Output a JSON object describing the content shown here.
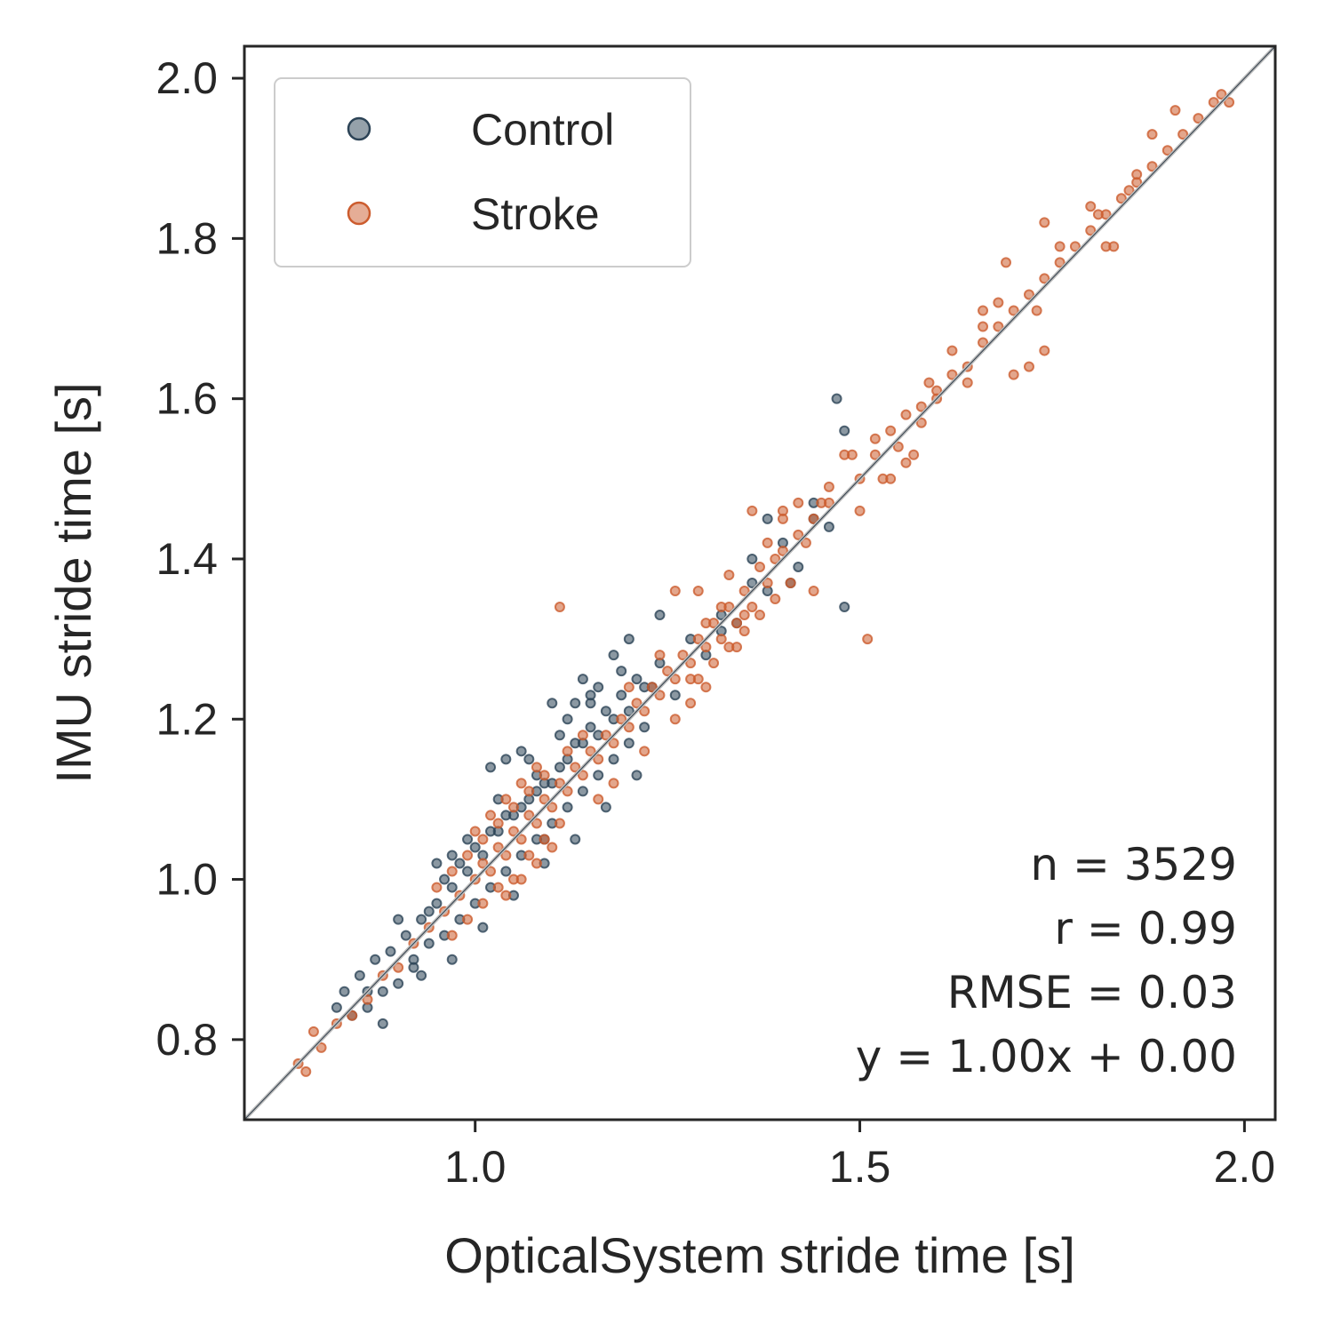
{
  "chart_data": {
    "type": "scatter",
    "title": "",
    "xlabel": "OpticalSystem stride time [s]",
    "ylabel": "IMU stride time [s]",
    "xlim": [
      0.7,
      2.04
    ],
    "ylim": [
      0.7,
      2.04
    ],
    "x_ticks": [
      "1.0",
      "1.5",
      "2.0"
    ],
    "y_ticks": [
      "0.8",
      "1.0",
      "1.2",
      "1.4",
      "1.6",
      "1.8",
      "2.0"
    ],
    "grid": false,
    "legend_position": "top-left",
    "identity_line": {
      "slope": 1.0,
      "intercept": 0.0
    },
    "stats": {
      "n": "n = 3529",
      "r": "r = 0.99",
      "rmse": "RMSE = 0.03",
      "fit": "y = 1.00x + 0.00"
    },
    "series": [
      {
        "name": "Control",
        "color": "#2c4356",
        "points": [
          [
            0.82,
            0.84
          ],
          [
            0.83,
            0.86
          ],
          [
            0.84,
            0.83
          ],
          [
            0.85,
            0.88
          ],
          [
            0.86,
            0.86
          ],
          [
            0.87,
            0.9
          ],
          [
            0.88,
            0.86
          ],
          [
            0.89,
            0.91
          ],
          [
            0.9,
            0.87
          ],
          [
            0.91,
            0.93
          ],
          [
            0.92,
            0.89
          ],
          [
            0.93,
            0.95
          ],
          [
            0.94,
            0.92
          ],
          [
            0.95,
            0.97
          ],
          [
            0.96,
            0.93
          ],
          [
            0.97,
            0.99
          ],
          [
            0.98,
            0.95
          ],
          [
            0.99,
            1.01
          ],
          [
            1.0,
            0.97
          ],
          [
            1.01,
            1.03
          ],
          [
            1.02,
            0.99
          ],
          [
            1.03,
            1.06
          ],
          [
            1.04,
            1.01
          ],
          [
            1.05,
            1.08
          ],
          [
            1.06,
            1.03
          ],
          [
            1.07,
            1.1
          ],
          [
            1.08,
            1.05
          ],
          [
            1.09,
            1.12
          ],
          [
            1.1,
            1.07
          ],
          [
            1.11,
            1.14
          ],
          [
            1.12,
            1.09
          ],
          [
            1.13,
            1.17
          ],
          [
            1.14,
            1.11
          ],
          [
            1.15,
            1.19
          ],
          [
            1.16,
            1.13
          ],
          [
            1.17,
            1.21
          ],
          [
            1.18,
            1.15
          ],
          [
            1.19,
            1.23
          ],
          [
            1.2,
            1.17
          ],
          [
            1.21,
            1.25
          ],
          [
            1.22,
            1.19
          ],
          [
            1.24,
            1.27
          ],
          [
            1.26,
            1.23
          ],
          [
            1.28,
            1.3
          ],
          [
            1.3,
            1.28
          ],
          [
            1.32,
            1.33
          ],
          [
            1.34,
            1.32
          ],
          [
            1.36,
            1.37
          ],
          [
            0.88,
            0.82
          ],
          [
            0.9,
            0.95
          ],
          [
            0.93,
            0.88
          ],
          [
            0.95,
            1.02
          ],
          [
            0.97,
            0.9
          ],
          [
            0.99,
            1.05
          ],
          [
            1.01,
            0.94
          ],
          [
            1.03,
            1.1
          ],
          [
            1.05,
            0.98
          ],
          [
            1.07,
            1.15
          ],
          [
            1.09,
            1.02
          ],
          [
            1.11,
            1.18
          ],
          [
            1.13,
            1.05
          ],
          [
            1.15,
            1.22
          ],
          [
            1.17,
            1.09
          ],
          [
            1.19,
            1.26
          ],
          [
            1.21,
            1.13
          ],
          [
            1.23,
            1.24
          ],
          [
            0.97,
            1.03
          ],
          [
            1.04,
            1.08
          ],
          [
            1.08,
            1.13
          ],
          [
            1.12,
            1.2
          ],
          [
            1.16,
            1.24
          ],
          [
            1.2,
            1.3
          ],
          [
            1.02,
            1.14
          ],
          [
            1.04,
            1.15
          ],
          [
            1.06,
            1.16
          ],
          [
            1.1,
            1.22
          ],
          [
            1.14,
            1.25
          ],
          [
            1.18,
            1.28
          ],
          [
            1.24,
            1.33
          ],
          [
            1.38,
            1.45
          ],
          [
            1.4,
            1.42
          ],
          [
            1.42,
            1.39
          ],
          [
            1.44,
            1.47
          ],
          [
            1.46,
            1.44
          ],
          [
            1.48,
            1.34
          ],
          [
            1.47,
            1.6
          ],
          [
            1.48,
            1.56
          ],
          [
            1.38,
            1.36
          ],
          [
            1.36,
            1.4
          ],
          [
            1.41,
            1.37
          ],
          [
            1.44,
            1.45
          ],
          [
            1.32,
            1.31
          ],
          [
            1.15,
            1.23
          ],
          [
            1.13,
            1.22
          ],
          [
            1.09,
            1.05
          ],
          [
            0.86,
            0.84
          ],
          [
            0.92,
            0.9
          ],
          [
            0.94,
            0.96
          ],
          [
            0.96,
            1.0
          ],
          [
            0.98,
            1.02
          ],
          [
            1.0,
            1.04
          ],
          [
            1.02,
            1.06
          ],
          [
            1.06,
            1.09
          ],
          [
            1.08,
            1.11
          ],
          [
            1.1,
            1.12
          ],
          [
            1.12,
            1.15
          ],
          [
            1.14,
            1.17
          ],
          [
            1.16,
            1.18
          ],
          [
            1.18,
            1.2
          ],
          [
            1.2,
            1.21
          ],
          [
            1.22,
            1.24
          ]
        ]
      },
      {
        "name": "Stroke",
        "color": "#cc5c2e",
        "points": [
          [
            0.77,
            0.77
          ],
          [
            0.78,
            0.76
          ],
          [
            0.79,
            0.81
          ],
          [
            0.8,
            0.79
          ],
          [
            0.82,
            0.82
          ],
          [
            0.84,
            0.83
          ],
          [
            0.86,
            0.85
          ],
          [
            0.88,
            0.88
          ],
          [
            0.9,
            0.89
          ],
          [
            0.92,
            0.92
          ],
          [
            0.94,
            0.94
          ],
          [
            0.96,
            0.96
          ],
          [
            0.98,
            0.98
          ],
          [
            1.0,
            1.0
          ],
          [
            1.01,
            1.02
          ],
          [
            1.02,
            1.01
          ],
          [
            1.03,
            1.04
          ],
          [
            1.04,
            1.03
          ],
          [
            1.05,
            1.06
          ],
          [
            1.06,
            1.05
          ],
          [
            1.07,
            1.08
          ],
          [
            1.08,
            1.07
          ],
          [
            1.09,
            1.1
          ],
          [
            1.1,
            1.09
          ],
          [
            1.11,
            1.12
          ],
          [
            1.12,
            1.11
          ],
          [
            1.13,
            1.14
          ],
          [
            1.14,
            1.13
          ],
          [
            1.15,
            1.16
          ],
          [
            1.16,
            1.15
          ],
          [
            1.17,
            1.18
          ],
          [
            1.18,
            1.17
          ],
          [
            1.19,
            1.2
          ],
          [
            1.2,
            1.19
          ],
          [
            1.21,
            1.22
          ],
          [
            1.22,
            1.21
          ],
          [
            1.23,
            1.24
          ],
          [
            1.24,
            1.23
          ],
          [
            1.25,
            1.26
          ],
          [
            1.26,
            1.25
          ],
          [
            1.27,
            1.28
          ],
          [
            1.28,
            1.27
          ],
          [
            1.29,
            1.3
          ],
          [
            1.3,
            1.29
          ],
          [
            1.31,
            1.32
          ],
          [
            1.32,
            1.3
          ],
          [
            1.33,
            1.34
          ],
          [
            1.34,
            1.32
          ],
          [
            0.95,
            0.99
          ],
          [
            0.97,
            1.01
          ],
          [
            0.99,
            1.03
          ],
          [
            1.01,
            1.05
          ],
          [
            1.03,
            1.07
          ],
          [
            1.05,
            1.09
          ],
          [
            1.07,
            1.11
          ],
          [
            1.09,
            1.13
          ],
          [
            0.97,
            0.93
          ],
          [
            0.99,
            0.95
          ],
          [
            1.01,
            0.97
          ],
          [
            1.03,
            0.99
          ],
          [
            1.05,
            1.0
          ],
          [
            1.07,
            1.03
          ],
          [
            1.09,
            1.05
          ],
          [
            1.11,
            1.07
          ],
          [
            1.0,
            1.06
          ],
          [
            1.02,
            1.08
          ],
          [
            1.04,
            1.1
          ],
          [
            1.06,
            1.12
          ],
          [
            1.08,
            1.14
          ],
          [
            1.04,
            0.98
          ],
          [
            1.06,
            1.0
          ],
          [
            1.08,
            1.02
          ],
          [
            1.1,
            1.04
          ],
          [
            1.12,
            1.16
          ],
          [
            1.14,
            1.18
          ],
          [
            1.16,
            1.1
          ],
          [
            1.18,
            1.12
          ],
          [
            1.2,
            1.24
          ],
          [
            1.22,
            1.16
          ],
          [
            1.24,
            1.28
          ],
          [
            1.26,
            1.2
          ],
          [
            1.28,
            1.25
          ],
          [
            1.3,
            1.32
          ],
          [
            1.35,
            1.36
          ],
          [
            1.36,
            1.34
          ],
          [
            1.38,
            1.37
          ],
          [
            1.39,
            1.4
          ],
          [
            1.4,
            1.41
          ],
          [
            1.42,
            1.43
          ],
          [
            1.44,
            1.45
          ],
          [
            1.46,
            1.47
          ],
          [
            1.5,
            1.5
          ],
          [
            1.52,
            1.53
          ],
          [
            1.54,
            1.56
          ],
          [
            1.55,
            1.54
          ],
          [
            1.56,
            1.58
          ],
          [
            1.58,
            1.59
          ],
          [
            1.6,
            1.61
          ],
          [
            1.62,
            1.63
          ],
          [
            1.64,
            1.64
          ],
          [
            1.66,
            1.67
          ],
          [
            1.68,
            1.69
          ],
          [
            1.7,
            1.71
          ],
          [
            1.72,
            1.73
          ],
          [
            1.74,
            1.75
          ],
          [
            1.76,
            1.77
          ],
          [
            1.78,
            1.79
          ],
          [
            1.8,
            1.81
          ],
          [
            1.82,
            1.83
          ],
          [
            1.84,
            1.85
          ],
          [
            1.86,
            1.87
          ],
          [
            1.88,
            1.89
          ],
          [
            1.9,
            1.91
          ],
          [
            1.92,
            1.93
          ],
          [
            1.94,
            1.95
          ],
          [
            1.96,
            1.97
          ],
          [
            1.98,
            1.97
          ],
          [
            1.97,
            1.98
          ],
          [
            1.91,
            1.96
          ],
          [
            1.83,
            1.79
          ],
          [
            1.82,
            1.79
          ],
          [
            1.74,
            1.66
          ],
          [
            1.7,
            1.63
          ],
          [
            1.69,
            1.77
          ],
          [
            1.72,
            1.64
          ],
          [
            1.66,
            1.69
          ],
          [
            1.62,
            1.66
          ],
          [
            1.59,
            1.62
          ],
          [
            1.58,
            1.57
          ],
          [
            1.57,
            1.53
          ],
          [
            1.54,
            1.5
          ],
          [
            1.52,
            1.55
          ],
          [
            1.49,
            1.53
          ],
          [
            1.45,
            1.47
          ],
          [
            1.43,
            1.42
          ],
          [
            1.41,
            1.37
          ],
          [
            1.39,
            1.35
          ],
          [
            1.37,
            1.33
          ],
          [
            1.35,
            1.31
          ],
          [
            1.33,
            1.29
          ],
          [
            1.31,
            1.27
          ],
          [
            1.29,
            1.25
          ],
          [
            1.36,
            1.46
          ],
          [
            1.4,
            1.46
          ],
          [
            1.38,
            1.42
          ],
          [
            1.44,
            1.36
          ],
          [
            1.35,
            1.33
          ],
          [
            1.37,
            1.39
          ],
          [
            1.51,
            1.3
          ],
          [
            1.11,
            1.34
          ],
          [
            1.26,
            1.36
          ],
          [
            1.29,
            1.36
          ],
          [
            1.33,
            1.38
          ],
          [
            1.3,
            1.24
          ],
          [
            1.28,
            1.22
          ],
          [
            1.34,
            1.29
          ],
          [
            1.32,
            1.34
          ],
          [
            1.53,
            1.5
          ],
          [
            1.6,
            1.6
          ],
          [
            1.68,
            1.72
          ],
          [
            1.76,
            1.79
          ],
          [
            1.74,
            1.82
          ],
          [
            1.81,
            1.83
          ],
          [
            1.86,
            1.88
          ],
          [
            1.88,
            1.93
          ],
          [
            1.85,
            1.86
          ],
          [
            1.8,
            1.84
          ],
          [
            1.73,
            1.71
          ],
          [
            1.66,
            1.71
          ],
          [
            1.64,
            1.62
          ],
          [
            1.56,
            1.52
          ],
          [
            1.5,
            1.46
          ],
          [
            1.46,
            1.49
          ],
          [
            1.48,
            1.53
          ],
          [
            1.42,
            1.47
          ],
          [
            1.4,
            1.45
          ]
        ]
      }
    ]
  }
}
